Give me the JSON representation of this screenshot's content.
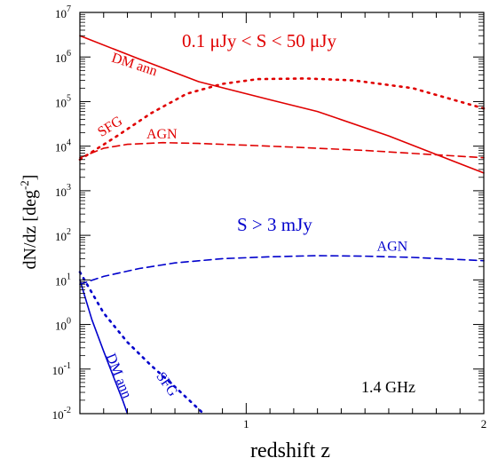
{
  "chart_data": {
    "type": "line",
    "title": "",
    "xlabel": "redshift z",
    "ylabel": "dN/dz [deg",
    "ylabel_sup": "-2",
    "ylabel_close": "]",
    "xlim": [
      0.3,
      2.0
    ],
    "ylim": [
      0.01,
      10000000
    ],
    "yscale": "log",
    "grid": false,
    "x_ticks": [
      {
        "value": 1,
        "label": "1"
      },
      {
        "value": 2,
        "label": "2"
      }
    ],
    "y_ticks": [
      {
        "exp": -2,
        "base": "10",
        "sup": "-2"
      },
      {
        "exp": -1,
        "base": "10",
        "sup": "-1"
      },
      {
        "exp": 0,
        "base": "10",
        "sup": "0"
      },
      {
        "exp": 1,
        "base": "10",
        "sup": "1"
      },
      {
        "exp": 2,
        "base": "10",
        "sup": "2"
      },
      {
        "exp": 3,
        "base": "10",
        "sup": "3"
      },
      {
        "exp": 4,
        "base": "10",
        "sup": "4"
      },
      {
        "exp": 5,
        "base": "10",
        "sup": "5"
      },
      {
        "exp": 6,
        "base": "10",
        "sup": "6"
      },
      {
        "exp": 7,
        "base": "10",
        "sup": "7"
      }
    ],
    "annotations": [
      {
        "id": "red-flux-range",
        "text": "0.1 μJy < S < 50 μJy",
        "color": "#e00000"
      },
      {
        "id": "blue-flux-cut",
        "text": "S > 3 mJy",
        "color": "#0000cc"
      },
      {
        "id": "frequency",
        "text": "1.4 GHz",
        "color": "#000000"
      }
    ],
    "series": [
      {
        "name": "DM ann",
        "group": "red",
        "color": "#e00000",
        "style": "solid",
        "x": [
          0.3,
          0.55,
          0.8,
          1.1,
          1.3,
          1.6,
          2.0
        ],
        "y": [
          3000000,
          900000,
          280000,
          110000,
          60000,
          17000,
          2500
        ]
      },
      {
        "name": "SFG",
        "group": "red",
        "color": "#e00000",
        "style": "dotted",
        "x": [
          0.3,
          0.45,
          0.6,
          0.75,
          0.9,
          1.05,
          1.25,
          1.45,
          1.7,
          2.0
        ],
        "y": [
          5000,
          16000,
          55000,
          150000,
          250000,
          320000,
          330000,
          300000,
          200000,
          70000
        ]
      },
      {
        "name": "AGN",
        "group": "red",
        "color": "#e00000",
        "style": "dashed",
        "x": [
          0.3,
          0.4,
          0.5,
          0.65,
          0.8,
          1.0,
          1.2,
          1.5,
          2.0
        ],
        "y": [
          5500,
          9000,
          11000,
          12000,
          11500,
          10500,
          9500,
          8000,
          5500
        ]
      },
      {
        "name": "AGN",
        "group": "blue",
        "color": "#0000cc",
        "style": "dashed",
        "x": [
          0.3,
          0.4,
          0.55,
          0.7,
          0.9,
          1.1,
          1.3,
          1.5,
          1.7,
          2.0
        ],
        "y": [
          8,
          12,
          18,
          24,
          30,
          33,
          35,
          34,
          32,
          27
        ]
      },
      {
        "name": "SFG",
        "group": "blue",
        "color": "#0000cc",
        "style": "dotted",
        "x": [
          0.3,
          0.4,
          0.5,
          0.6,
          0.7,
          0.82
        ],
        "y": [
          15,
          1.8,
          0.4,
          0.12,
          0.04,
          0.01
        ]
      },
      {
        "name": "DM ann",
        "group": "blue",
        "color": "#0000cc",
        "style": "solid",
        "x": [
          0.3,
          0.35,
          0.4,
          0.44,
          0.48,
          0.5
        ],
        "y": [
          10,
          1.3,
          0.25,
          0.07,
          0.02,
          0.01
        ]
      }
    ],
    "series_labels": [
      {
        "text": "DM ann",
        "color": "#e00000",
        "x": 0.43,
        "y": 800000,
        "rotate": 18
      },
      {
        "text": "SFG",
        "color": "#e00000",
        "x": 0.39,
        "y": 16000,
        "rotate": -32
      },
      {
        "text": "AGN",
        "color": "#e00000",
        "x": 0.58,
        "y": 15000,
        "rotate": 0
      },
      {
        "text": "AGN",
        "color": "#0000cc",
        "x": 1.55,
        "y": 45,
        "rotate": 0
      },
      {
        "text": "SFG",
        "color": "#0000cc",
        "x": 0.62,
        "y": 0.07,
        "rotate": 55
      },
      {
        "text": "DM ann",
        "color": "#0000cc",
        "x": 0.41,
        "y": 0.2,
        "rotate": 68
      }
    ]
  }
}
